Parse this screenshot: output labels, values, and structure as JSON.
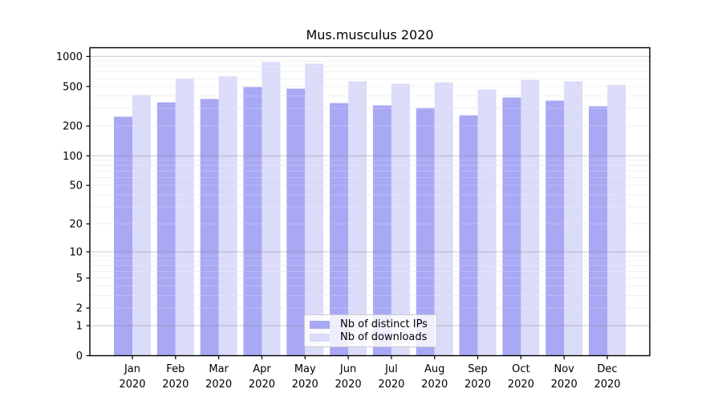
{
  "title": "Mus.musculus 2020",
  "colors": {
    "distinct_ips_bar": "#a8a8f4",
    "downloads_bar": "#dbdbfa",
    "axis": "#000000",
    "major_grid": "rgba(128,128,128,0.42)",
    "minor_grid": "#ededed",
    "legend_border": "#cccccc"
  },
  "x_axis": {
    "months": [
      "Jan",
      "Feb",
      "Mar",
      "Apr",
      "May",
      "Jun",
      "Jul",
      "Aug",
      "Sep",
      "Oct",
      "Nov",
      "Dec"
    ],
    "year": "2020"
  },
  "y_axis": {
    "tick_values": [
      0,
      1,
      2,
      5,
      10,
      20,
      50,
      100,
      200,
      500,
      1000
    ],
    "tick_labels": [
      "0",
      "1",
      "2",
      "5",
      "10",
      "20",
      "50",
      "100",
      "200",
      "500",
      "1000"
    ]
  },
  "chart_data": {
    "type": "bar",
    "title": "Mus.musculus 2020",
    "categories": [
      "Jan 2020",
      "Feb 2020",
      "Mar 2020",
      "Apr 2020",
      "May 2020",
      "Jun 2020",
      "Jul 2020",
      "Aug 2020",
      "Sep 2020",
      "Oct 2020",
      "Nov 2020",
      "Dec 2020"
    ],
    "series": [
      {
        "name": "Nb of distinct IPs",
        "key": "distinct-ips",
        "color": "#a8a8f4",
        "values": [
          248,
          346,
          374,
          493,
          475,
          340,
          322,
          304,
          256,
          387,
          360,
          316
        ]
      },
      {
        "name": "Nb of downloads",
        "key": "downloads",
        "color": "#dbdbfa",
        "values": [
          412,
          605,
          630,
          878,
          846,
          562,
          532,
          549,
          466,
          583,
          562,
          519
        ]
      }
    ],
    "xlabel": "",
    "ylabel": "",
    "yscale": "log1p (symlog-like: y position proportional to log10(1+value), 0 at baseline)",
    "yticks": [
      0,
      1,
      2,
      5,
      10,
      20,
      50,
      100,
      200,
      500,
      1000
    ],
    "ylim": [
      0,
      1190
    ],
    "grid": "minor log gridlines (2-9 per decade) light gray, major gridlines at 1/10/100/1000 darker gray, drawn on top of bars",
    "legend_position": "lower center inside plot"
  }
}
